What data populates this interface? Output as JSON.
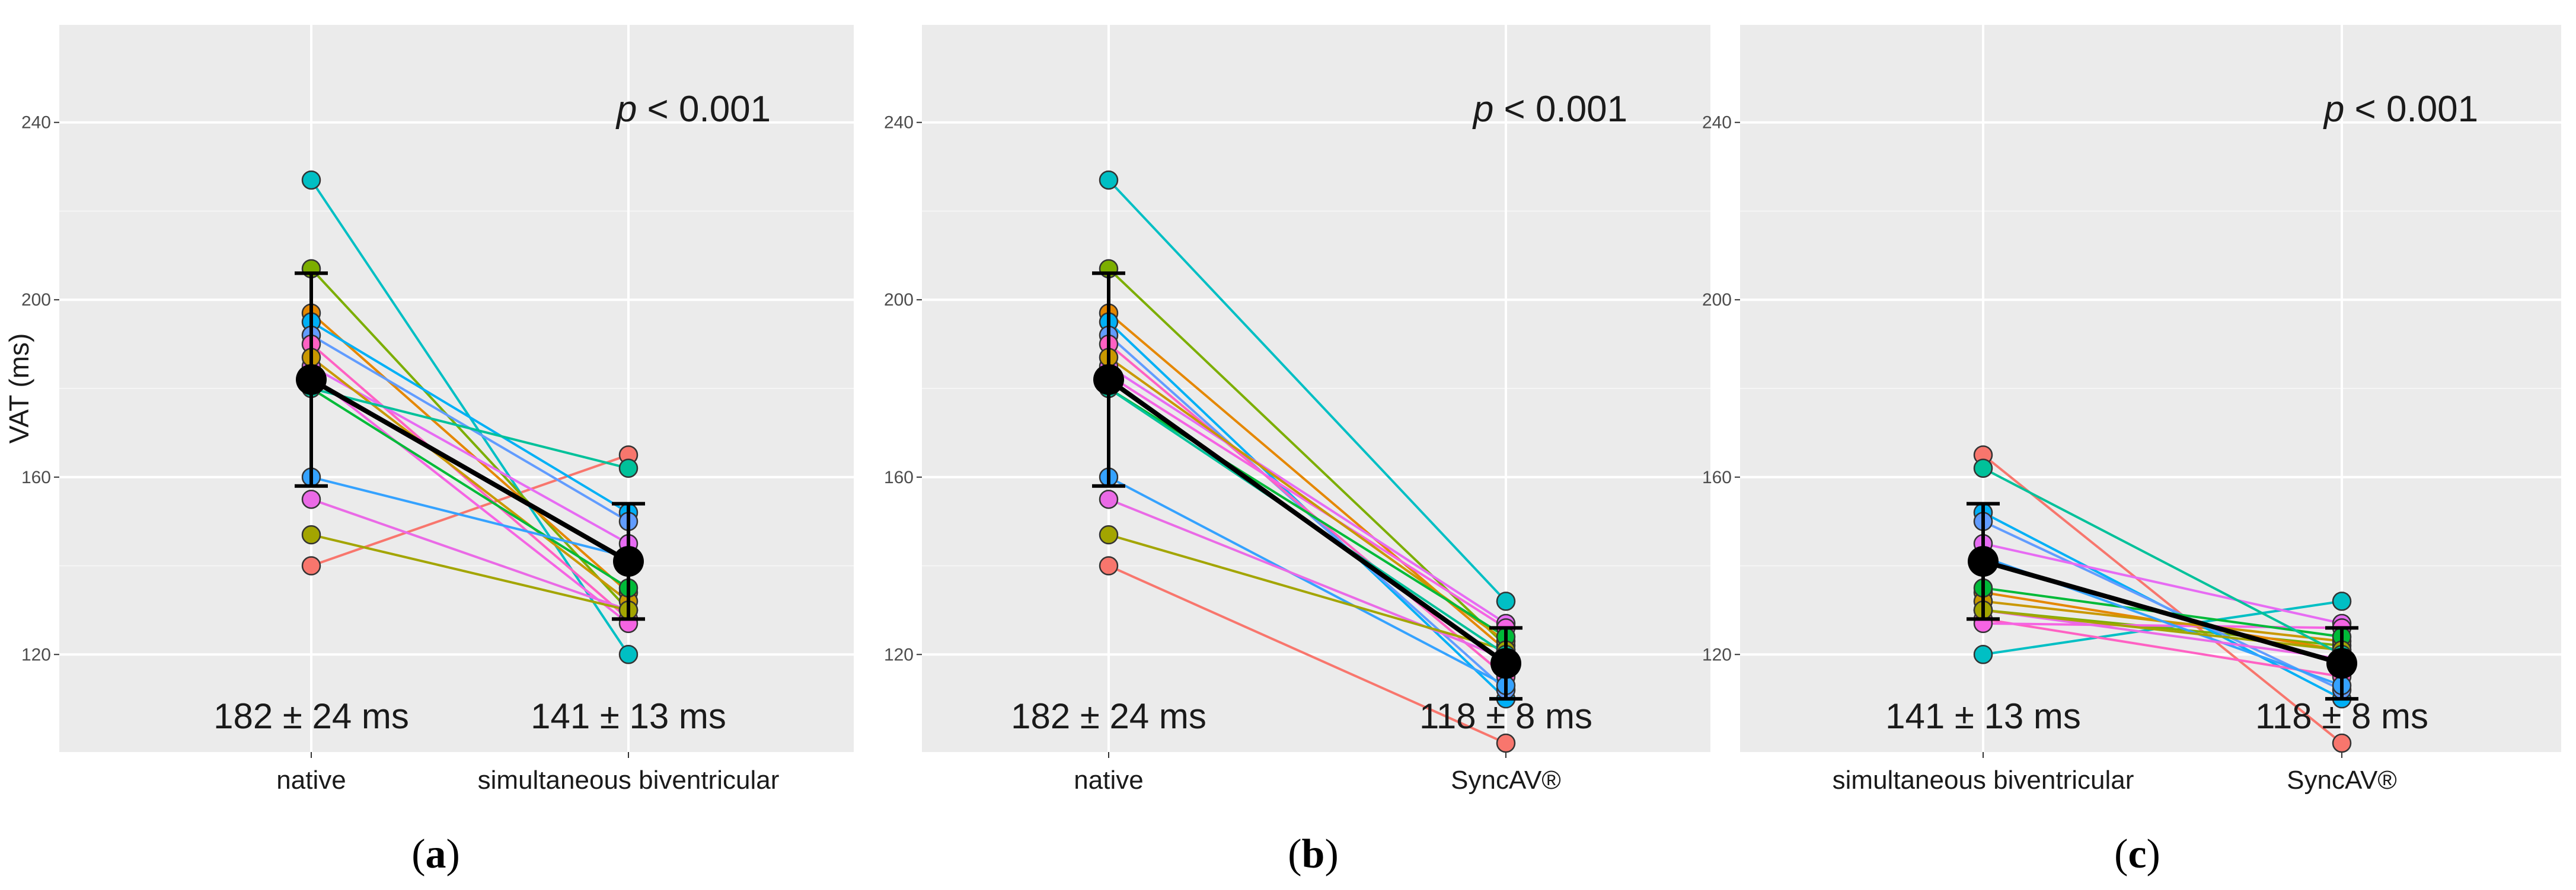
{
  "figure": {
    "panel_labels": [
      "(a)",
      "(b)",
      "(c)"
    ]
  },
  "chart_data": [
    {
      "type": "line",
      "panel": "a",
      "ylabel": "VAT (ms)",
      "yticks": [
        120,
        160,
        200,
        240
      ],
      "ylim": [
        98,
        262
      ],
      "categories": [
        "native",
        "simultaneous biventricular"
      ],
      "p_value": {
        "prefix": "p",
        "text": " < 0.001"
      },
      "stats": [
        "182 ± 24 ms",
        "141 ± 13 ms"
      ],
      "mean": [
        182,
        141
      ],
      "sd": [
        24,
        13
      ],
      "series": [
        {
          "color": "#F8766D",
          "values": [
            140,
            165
          ]
        },
        {
          "color": "#00BFC4",
          "values": [
            227,
            120
          ]
        },
        {
          "color": "#7CAE00",
          "values": [
            207,
            130
          ]
        },
        {
          "color": "#E58700",
          "values": [
            197,
            134
          ]
        },
        {
          "color": "#00B0F6",
          "values": [
            195,
            152
          ]
        },
        {
          "color": "#619CFF",
          "values": [
            192,
            150
          ]
        },
        {
          "color": "#FF61C3",
          "values": [
            190,
            128
          ]
        },
        {
          "color": "#E76BF3",
          "values": [
            185,
            145
          ]
        },
        {
          "color": "#F564E3",
          "values": [
            183,
            127
          ]
        },
        {
          "color": "#C99800",
          "values": [
            187,
            132
          ]
        },
        {
          "color": "#00BA38",
          "values": [
            180,
            135
          ]
        },
        {
          "color": "#35A2FF",
          "values": [
            160,
            142
          ]
        },
        {
          "color": "#EA6AE6",
          "values": [
            155,
            130
          ]
        },
        {
          "color": "#A3A500",
          "values": [
            147,
            130
          ]
        },
        {
          "color": "#00C19A",
          "values": [
            180,
            162
          ]
        }
      ]
    },
    {
      "type": "line",
      "panel": "b",
      "ylabel": "",
      "yticks": [
        120,
        160,
        200,
        240
      ],
      "ylim": [
        98,
        262
      ],
      "categories": [
        "native",
        "SyncAV®"
      ],
      "p_value": {
        "prefix": "p",
        "text": " < 0.001"
      },
      "stats": [
        "182 ± 24 ms",
        "118 ± 8 ms"
      ],
      "mean": [
        182,
        118
      ],
      "sd": [
        24,
        8
      ],
      "series": [
        {
          "color": "#F8766D",
          "values": [
            140,
            100
          ]
        },
        {
          "color": "#00BFC4",
          "values": [
            227,
            132
          ]
        },
        {
          "color": "#7CAE00",
          "values": [
            207,
            122
          ]
        },
        {
          "color": "#E58700",
          "values": [
            197,
            121
          ]
        },
        {
          "color": "#00B0F6",
          "values": [
            195,
            110
          ]
        },
        {
          "color": "#619CFF",
          "values": [
            192,
            112
          ]
        },
        {
          "color": "#FF61C3",
          "values": [
            190,
            115
          ]
        },
        {
          "color": "#E76BF3",
          "values": [
            185,
            127
          ]
        },
        {
          "color": "#F564E3",
          "values": [
            183,
            126
          ]
        },
        {
          "color": "#C99800",
          "values": [
            187,
            123
          ]
        },
        {
          "color": "#00BA38",
          "values": [
            180,
            124
          ]
        },
        {
          "color": "#35A2FF",
          "values": [
            160,
            113
          ]
        },
        {
          "color": "#EA6AE6",
          "values": [
            155,
            119
          ]
        },
        {
          "color": "#A3A500",
          "values": [
            147,
            121
          ]
        },
        {
          "color": "#00C19A",
          "values": [
            180,
            120
          ]
        }
      ]
    },
    {
      "type": "line",
      "panel": "c",
      "ylabel": "",
      "yticks": [
        120,
        160,
        200,
        240
      ],
      "ylim": [
        98,
        262
      ],
      "categories": [
        "simultaneous biventricular",
        "SyncAV®"
      ],
      "p_value": {
        "prefix": "p",
        "text": " < 0.001"
      },
      "stats": [
        "141 ± 13 ms",
        "118 ± 8 ms"
      ],
      "mean": [
        141,
        118
      ],
      "sd": [
        13,
        8
      ],
      "series": [
        {
          "color": "#F8766D",
          "values": [
            165,
            100
          ]
        },
        {
          "color": "#00BFC4",
          "values": [
            120,
            132
          ]
        },
        {
          "color": "#7CAE00",
          "values": [
            130,
            122
          ]
        },
        {
          "color": "#E58700",
          "values": [
            134,
            121
          ]
        },
        {
          "color": "#00B0F6",
          "values": [
            152,
            110
          ]
        },
        {
          "color": "#619CFF",
          "values": [
            150,
            112
          ]
        },
        {
          "color": "#FF61C3",
          "values": [
            128,
            115
          ]
        },
        {
          "color": "#E76BF3",
          "values": [
            145,
            127
          ]
        },
        {
          "color": "#F564E3",
          "values": [
            127,
            126
          ]
        },
        {
          "color": "#C99800",
          "values": [
            132,
            123
          ]
        },
        {
          "color": "#00BA38",
          "values": [
            135,
            124
          ]
        },
        {
          "color": "#35A2FF",
          "values": [
            142,
            113
          ]
        },
        {
          "color": "#EA6AE6",
          "values": [
            130,
            119
          ]
        },
        {
          "color": "#A3A500",
          "values": [
            130,
            121
          ]
        },
        {
          "color": "#00C19A",
          "values": [
            162,
            120
          ]
        }
      ]
    }
  ]
}
